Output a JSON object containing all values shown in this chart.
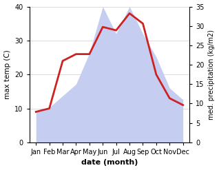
{
  "months": [
    "Jan",
    "Feb",
    "Mar",
    "Apr",
    "May",
    "Jun",
    "Jul",
    "Aug",
    "Sep",
    "Oct",
    "Nov",
    "Dec"
  ],
  "temperature": [
    9,
    10,
    24,
    26,
    26,
    34,
    33,
    38,
    35,
    20,
    13,
    11
  ],
  "precipitation": [
    8,
    9,
    12,
    15,
    23,
    35,
    28,
    35,
    28,
    22,
    14,
    11
  ],
  "temp_color": "#cc2222",
  "precip_fill_color": "#c5cef0",
  "xlabel": "date (month)",
  "ylabel_left": "max temp (C)",
  "ylabel_right": "med. precipitation (kg/m2)",
  "ylim_left": [
    0,
    40
  ],
  "ylim_right": [
    0,
    35
  ],
  "yticks_left": [
    0,
    10,
    20,
    30,
    40
  ],
  "yticks_right": [
    0,
    5,
    10,
    15,
    20,
    25,
    30,
    35
  ],
  "bg_color": "#ffffff",
  "line_width": 2.0,
  "figsize": [
    3.18,
    2.47
  ],
  "dpi": 100
}
